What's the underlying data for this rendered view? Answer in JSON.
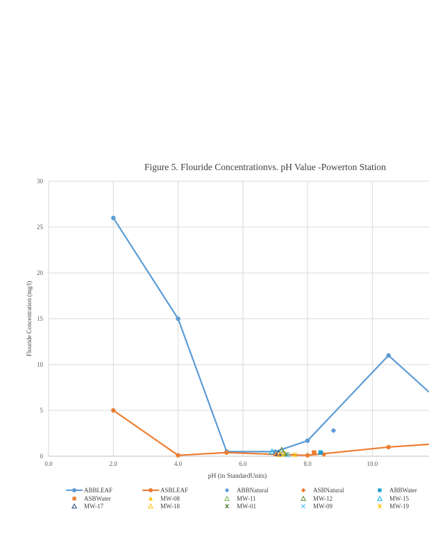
{
  "chart_data": {
    "type": "line",
    "title": "Figure 5. Flouride  Concentrationvs.  pH Value  -Powerton  Station",
    "xlabel": "pH (in StandardUnits)",
    "ylabel": "Flouride Concentration  (mg/l)",
    "xlim": [
      0,
      11.75
    ],
    "ylim": [
      0,
      30
    ],
    "x_ticks": [
      "0.0",
      "2.0",
      "4.0",
      "6.0",
      "8.0",
      "10.0"
    ],
    "y_ticks": [
      "0",
      "5",
      "10",
      "15",
      "20",
      "25",
      "30"
    ],
    "grid": true,
    "legend_position": "bottom",
    "colors": {
      "blue": "#5b9bd5",
      "orange": "#ed7d31",
      "yellow": "#ffc000",
      "green": "#70ad47",
      "darkgreen": "#548235",
      "navy": "#264478",
      "teal": "#1f9fcf",
      "cyan": "#00b0f0",
      "lightcyan": "#4fc3f7"
    },
    "series": [
      {
        "name": "ABBLEAF",
        "kind": "line",
        "marker": "circle",
        "color": "#5b9bd5",
        "x": [
          2.0,
          4.0,
          5.5,
          7.0,
          8.0,
          10.5,
          11.75
        ],
        "y": [
          26,
          15,
          0.5,
          0.5,
          1.7,
          11,
          7
        ]
      },
      {
        "name": "ASBLEAF",
        "kind": "line",
        "marker": "circle",
        "color": "#ed7d31",
        "x": [
          2.0,
          4.0,
          5.5,
          7.0,
          8.0,
          10.5,
          11.75
        ],
        "y": [
          5,
          0.1,
          0.4,
          0.2,
          0.1,
          1.0,
          1.3
        ]
      },
      {
        "name": "ABBNatural",
        "kind": "scatter",
        "marker": "diamond",
        "color": "#5b9bd5",
        "x": [
          8.8
        ],
        "y": [
          2.8
        ]
      },
      {
        "name": "ASBNatural",
        "kind": "scatter",
        "marker": "diamond",
        "color": "#ed7d31",
        "x": [
          8.5
        ],
        "y": [
          0.2
        ]
      },
      {
        "name": "ABBWater",
        "kind": "scatter",
        "marker": "square",
        "color": "#1f9fcf",
        "x": [
          8.4
        ],
        "y": [
          0.4
        ]
      },
      {
        "name": "ASBWater",
        "kind": "scatter",
        "marker": "square",
        "color": "#ed7d31",
        "x": [
          8.2
        ],
        "y": [
          0.4
        ]
      },
      {
        "name": "MW-08",
        "kind": "scatter",
        "marker": "triangle-fill",
        "color": "#ffc000",
        "x": [
          7.3
        ],
        "y": [
          0.3
        ]
      },
      {
        "name": "MW-11",
        "kind": "scatter",
        "marker": "triangle",
        "color": "#70ad47",
        "x": [
          7.25
        ],
        "y": [
          0.4
        ]
      },
      {
        "name": "MW-12",
        "kind": "scatter",
        "marker": "triangle",
        "color": "#548235",
        "x": [
          7.2
        ],
        "y": [
          0.7
        ]
      },
      {
        "name": "MW-15",
        "kind": "scatter",
        "marker": "triangle",
        "color": "#00b0f0",
        "x": [
          6.9
        ],
        "y": [
          0.5
        ]
      },
      {
        "name": "MW-17",
        "kind": "scatter",
        "marker": "triangle",
        "color": "#264478",
        "x": [
          7.1
        ],
        "y": [
          0.3
        ]
      },
      {
        "name": "MW-18",
        "kind": "scatter",
        "marker": "triangle",
        "color": "#ffc000",
        "x": [
          7.15
        ],
        "y": [
          0.2
        ]
      },
      {
        "name": "MW-01",
        "kind": "scatter",
        "marker": "asterisk",
        "color": "#548235",
        "x": [
          7.35
        ],
        "y": [
          0.2
        ]
      },
      {
        "name": "MW-09",
        "kind": "scatter",
        "marker": "x",
        "color": "#4fc3f7",
        "x": [
          7.4
        ],
        "y": [
          0.1
        ]
      },
      {
        "name": "MW-19",
        "kind": "scatter",
        "marker": "asterisk",
        "color": "#ffc000",
        "x": [
          7.6
        ],
        "y": [
          0.15
        ]
      }
    ]
  }
}
